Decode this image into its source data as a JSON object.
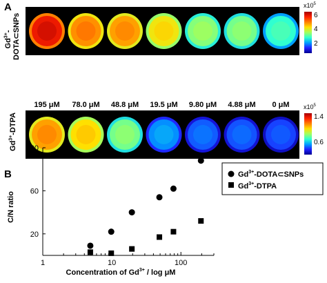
{
  "panels": {
    "a_letter": "A",
    "b_letter": "B"
  },
  "panel_a": {
    "rows": [
      {
        "label_line1": "Gd",
        "label_sup": "3+",
        "label_line2_suffix": "-",
        "label_line3": "DOTA⊂SNPs",
        "colorbar": {
          "exponent_base": "x10",
          "exponent": "5",
          "ticks": [
            "6",
            "4",
            "2"
          ]
        },
        "well_intensities": [
          0.92,
          0.78,
          0.76,
          0.66,
          0.52,
          0.5,
          0.42
        ]
      },
      {
        "label_line1": "Gd",
        "label_sup": "3+",
        "label_line2": "-DTPA",
        "colorbar": {
          "exponent_base": "x10",
          "exponent": "5",
          "ticks": [
            "1.4",
            "0.6"
          ]
        },
        "well_intensities": [
          0.76,
          0.68,
          0.5,
          0.28,
          0.22,
          0.21,
          0.19
        ]
      }
    ],
    "concentrations": [
      "195 μM",
      "78.0 μM",
      "48.8 μM",
      "19.5 μM",
      "9.80 μM",
      "4.88 μM",
      "0 μM"
    ]
  },
  "chart_data": {
    "type": "scatter",
    "xscale": "log",
    "xlim": [
      1,
      300
    ],
    "ylim": [
      0,
      100
    ],
    "x_ticks": [
      "1",
      "10",
      "100"
    ],
    "y_ticks": [
      "20",
      "60",
      "100"
    ],
    "xlabel_prefix": "Concentration of Gd",
    "xlabel_sup": "3+",
    "xlabel_suffix": " / log μM",
    "ylabel": "C/N ratio",
    "legend_position": "top-right",
    "series": [
      {
        "name_prefix": "Gd",
        "name_sup": "3+",
        "name_suffix": "-DOTA⊂SNPs",
        "marker": "circle",
        "x": [
          4.88,
          9.8,
          19.5,
          48.8,
          78,
          195
        ],
        "y": [
          9,
          22,
          40,
          54,
          62,
          88
        ]
      },
      {
        "name_prefix": "Gd",
        "name_sup": "3+",
        "name_suffix": "-DTPA",
        "marker": "square",
        "x": [
          4.88,
          9.8,
          19.5,
          48.8,
          78,
          195
        ],
        "y": [
          3,
          2,
          6,
          17,
          22,
          32
        ]
      }
    ]
  }
}
